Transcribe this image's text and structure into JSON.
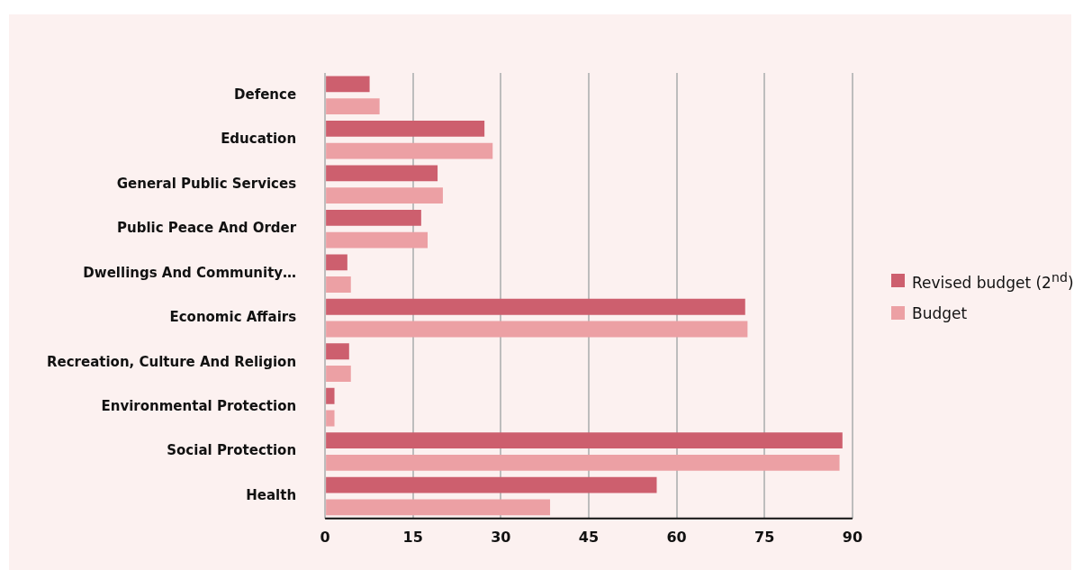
{
  "chart_data": {
    "type": "bar",
    "orientation": "horizontal",
    "categories": [
      "Defence",
      "Education",
      "General Public Services",
      "Public Peace And Order",
      "Dwellings And Community…",
      "Economic Affairs",
      "Recreation, Culture And Religion",
      "Environmental Protection",
      "Social Protection",
      "Health"
    ],
    "series": [
      {
        "name": "Revised budget (2$^{nd}$)",
        "color": "#cd5f6e",
        "values": [
          7.6,
          27.2,
          19.2,
          16.4,
          3.8,
          71.7,
          4.1,
          1.6,
          88.3,
          56.6
        ]
      },
      {
        "name": "Budget",
        "color": "#eca0a4",
        "values": [
          9.3,
          28.6,
          20.1,
          17.5,
          4.4,
          72.1,
          4.4,
          1.6,
          87.8,
          38.4
        ]
      }
    ],
    "xlim": [
      0,
      90
    ],
    "xticks": [
      0,
      15,
      30,
      45,
      60,
      75,
      90
    ],
    "grid": "x",
    "legend": "right"
  }
}
